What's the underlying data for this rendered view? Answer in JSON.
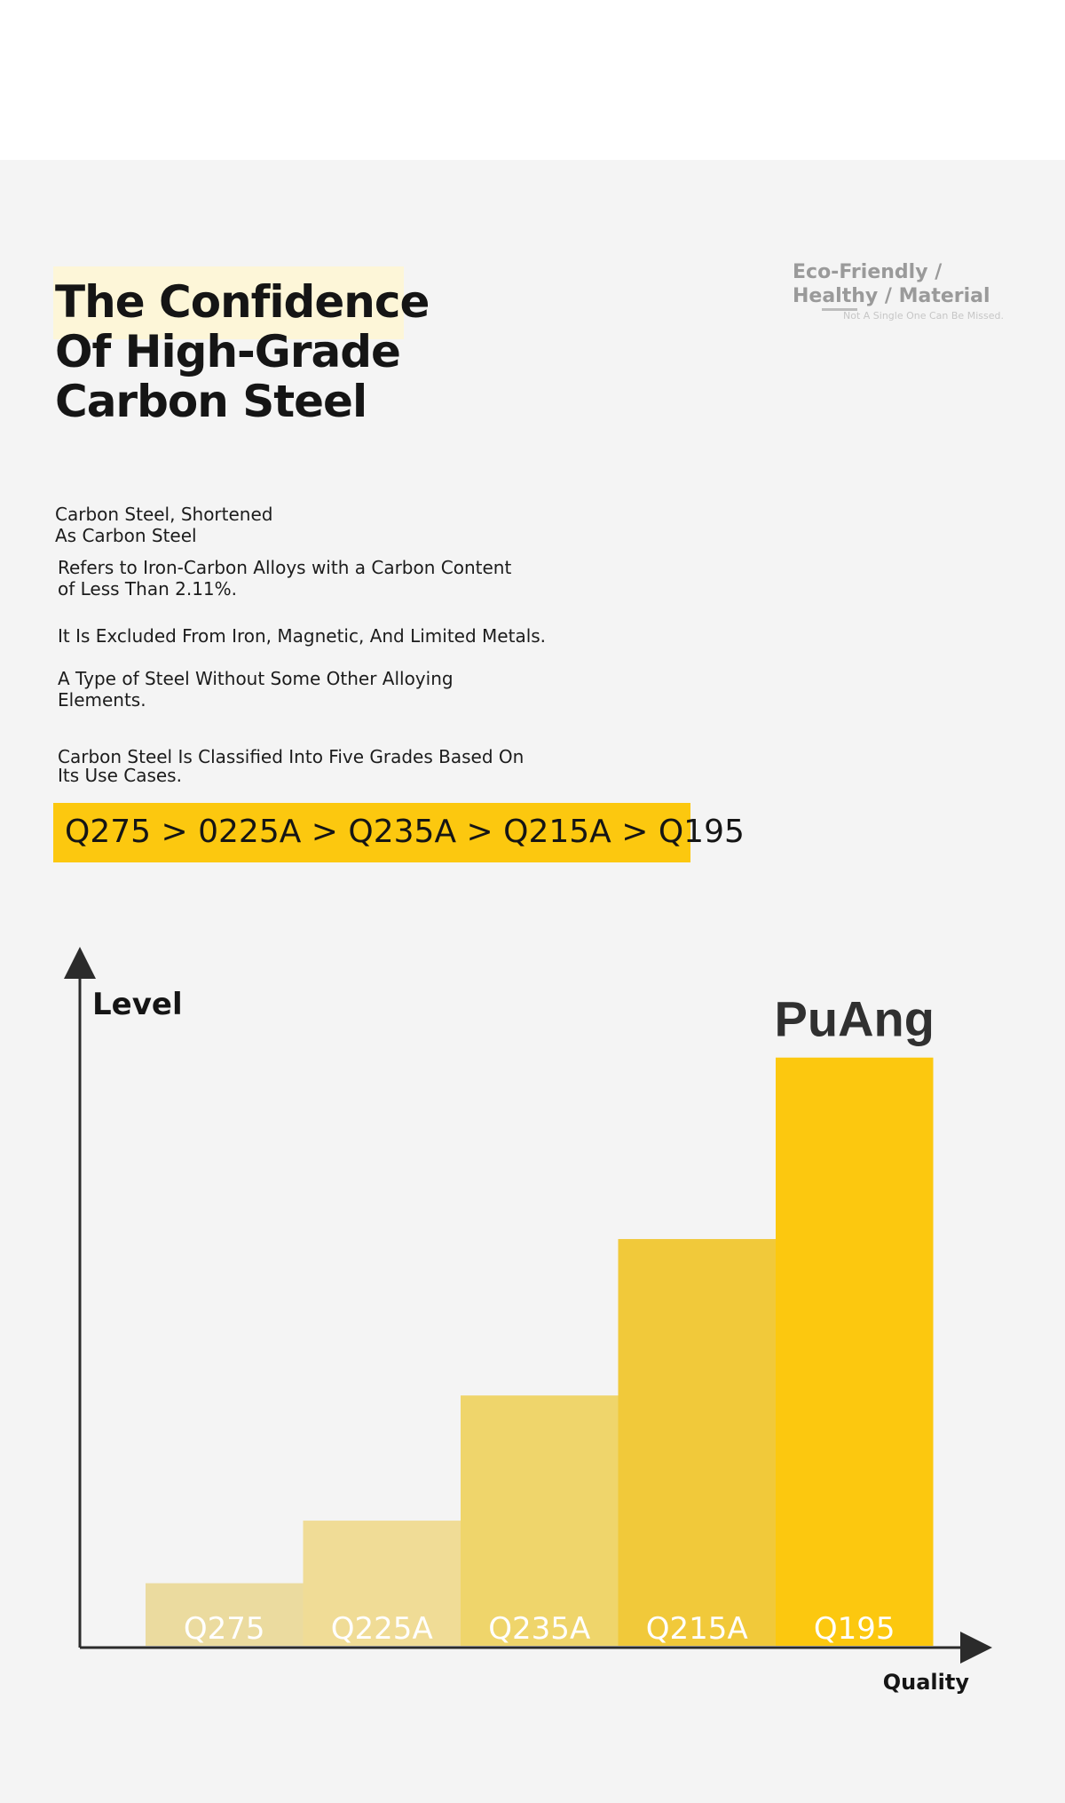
{
  "heading": {
    "title": "The Confidence\nOf High-Grade\nCarbon Steel"
  },
  "tagline": {
    "main": "Eco-Friendly /\nHealthy / Material",
    "sub": "Not A Single One Can Be Missed."
  },
  "intro": {
    "lead": "Carbon Steel, Shortened\nAs Carbon Steel",
    "p1": "Refers to Iron-Carbon Alloys with a Carbon Content\nof Less Than 2.11%.",
    "p2": "It Is Excluded From Iron, Magnetic, And Limited Metals.",
    "p3": "A Type of Steel Without Some Other Alloying\nElements.",
    "p4": "Carbon Steel Is Classified Into Five Grades Based On\nIts Use Cases."
  },
  "grades_banner": "Q275 > 0225A > Q235A > Q215A > Q195",
  "chart_data": {
    "type": "bar",
    "categories": [
      "Q275",
      "Q225A",
      "Q235A",
      "Q215A",
      "Q195"
    ],
    "values": [
      1,
      2,
      4,
      6.5,
      9.4
    ],
    "ylim": [
      0,
      11
    ],
    "ylabel": "Level",
    "xlabel": "Quality",
    "annotation": "PuAng",
    "grid": false,
    "colors": [
      "#ebdb9f",
      "#f0dc96",
      "#efd56b",
      "#f1c93a",
      "#fcc80f"
    ]
  }
}
